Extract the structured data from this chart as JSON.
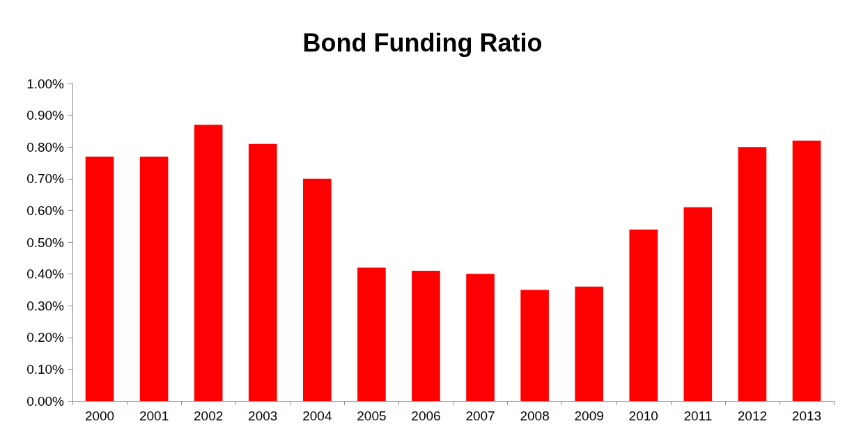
{
  "chart_data": {
    "type": "bar",
    "title": "Bond Funding Ratio",
    "categories": [
      "2000",
      "2001",
      "2002",
      "2003",
      "2004",
      "2005",
      "2006",
      "2007",
      "2008",
      "2009",
      "2010",
      "2011",
      "2012",
      "2013"
    ],
    "values": [
      0.77,
      0.77,
      0.87,
      0.81,
      0.7,
      0.42,
      0.41,
      0.4,
      0.35,
      0.36,
      0.54,
      0.61,
      0.8,
      0.82
    ],
    "color": "#ff0000",
    "ylim": [
      0,
      1
    ],
    "yticks": [
      {
        "value": 0,
        "label": "0.00%"
      },
      {
        "value": 0.1,
        "label": "0.10%"
      },
      {
        "value": 0.2,
        "label": "0.20%"
      },
      {
        "value": 0.3,
        "label": "0.30%"
      },
      {
        "value": 0.4,
        "label": "0.40%"
      },
      {
        "value": 0.5,
        "label": "0.50%"
      },
      {
        "value": 0.6,
        "label": "0.60%"
      },
      {
        "value": 0.7,
        "label": "0.70%"
      },
      {
        "value": 0.8,
        "label": "0.80%"
      },
      {
        "value": 0.9,
        "label": "0.90%"
      },
      {
        "value": 1,
        "label": "1.00%"
      }
    ],
    "grid": false
  }
}
